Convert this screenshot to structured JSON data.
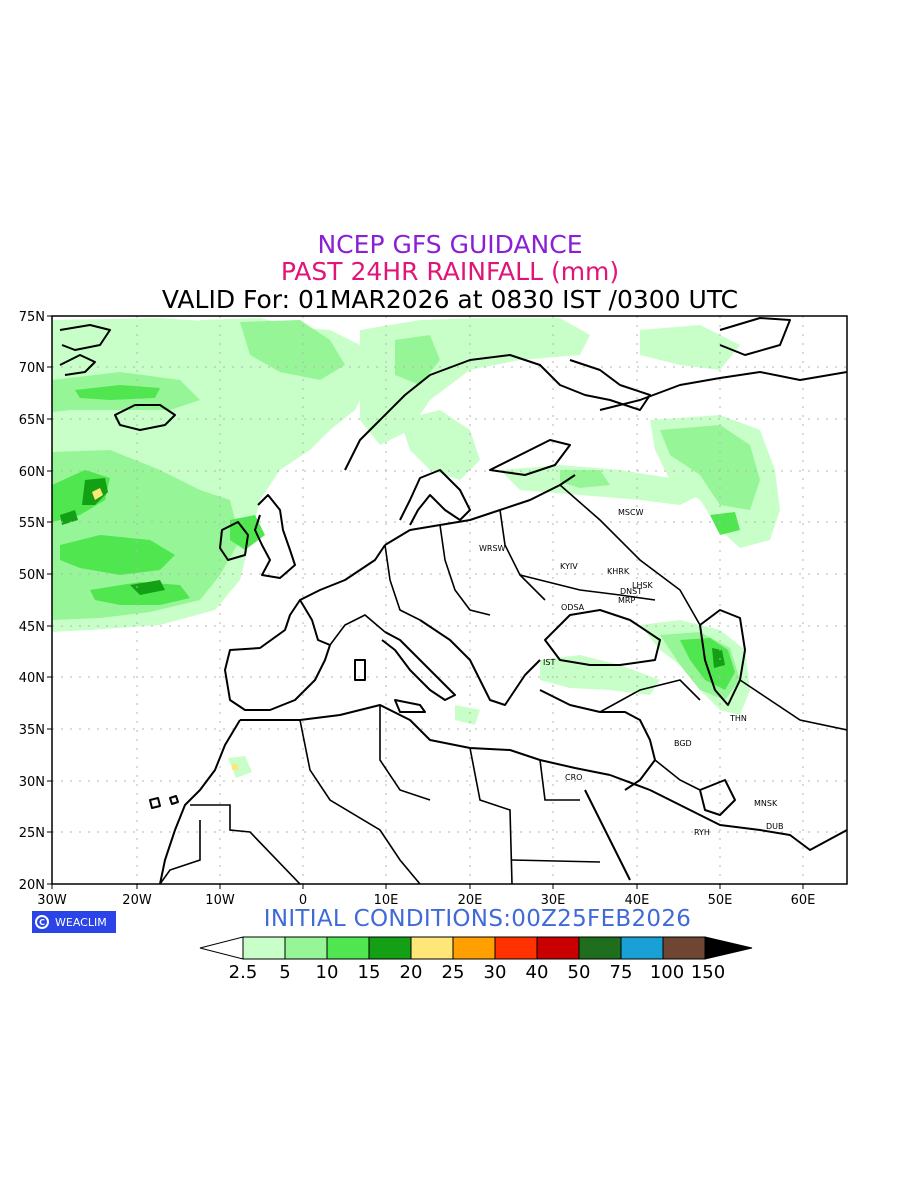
{
  "titles": {
    "line1": "NCEP GFS GUIDANCE",
    "line2": "PAST 24HR RAINFALL (mm)",
    "line3": "VALID For: 01MAR2026 at 0830 IST /0300 UTC"
  },
  "init_conditions": "INITIAL  CONDITIONS:00Z25FEB2026",
  "logo": {
    "text": "WEACLIM",
    "icon": "copyright-icon"
  },
  "axes": {
    "lon_ticks": [
      "30W",
      "20W",
      "10W",
      "0",
      "10E",
      "20E",
      "30E",
      "40E",
      "50E",
      "60E"
    ],
    "lat_ticks": [
      "75N",
      "70N",
      "65N",
      "60N",
      "55N",
      "50N",
      "45N",
      "40N",
      "35N",
      "30N",
      "25N",
      "20N"
    ]
  },
  "cities": [
    {
      "name": "MSCW"
    },
    {
      "name": "WRSW"
    },
    {
      "name": "KYIV"
    },
    {
      "name": "KHRK"
    },
    {
      "name": "LHSK"
    },
    {
      "name": "DNST"
    },
    {
      "name": "MRP"
    },
    {
      "name": "ODSA"
    },
    {
      "name": "IST"
    },
    {
      "name": "THN"
    },
    {
      "name": "BGD"
    },
    {
      "name": "CRO"
    },
    {
      "name": "MNSK"
    },
    {
      "name": "DUB"
    },
    {
      "name": "RYH"
    }
  ],
  "colorbar": {
    "labels": [
      "2.5",
      "5",
      "10",
      "15",
      "20",
      "25",
      "30",
      "40",
      "50",
      "75",
      "100",
      "150"
    ],
    "colors": [
      "#c8ffc8",
      "#96f596",
      "#50e650",
      "#14a014",
      "#ffe678",
      "#ffa000",
      "#ff3200",
      "#c80000",
      "#1e6e1e",
      "#19a0d7",
      "#6e4632"
    ]
  },
  "rain_colors": {
    "light": "#c8ffc8",
    "mid": "#96f596",
    "heavy": "#50e650",
    "vheavy": "#14a014",
    "yellow": "#ffe678"
  }
}
